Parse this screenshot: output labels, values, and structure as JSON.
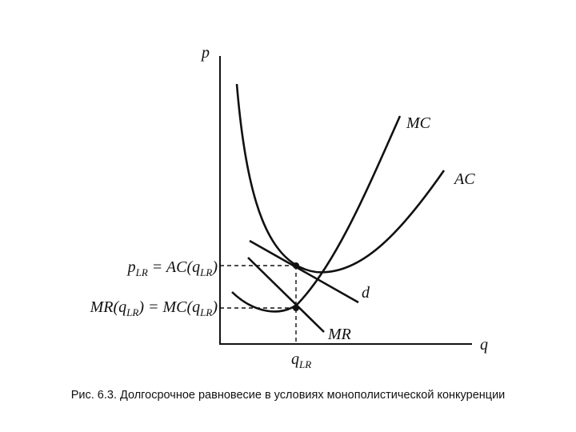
{
  "axes": {
    "y_label": "p",
    "x_label": "q"
  },
  "curves": {
    "mc": "MC",
    "ac": "AC",
    "d": "d",
    "mr": "MR"
  },
  "levels": {
    "price": [
      "p",
      "LR",
      " = AC(q",
      "LR",
      ")"
    ],
    "revenue": [
      "MR(q",
      "LR",
      ") = MC(q",
      "LR",
      ")"
    ],
    "quantity": [
      "q",
      "LR"
    ]
  },
  "caption": "Рис. 6.3. Долгосрочное равновесие в условиях монополистической конкуренции"
}
